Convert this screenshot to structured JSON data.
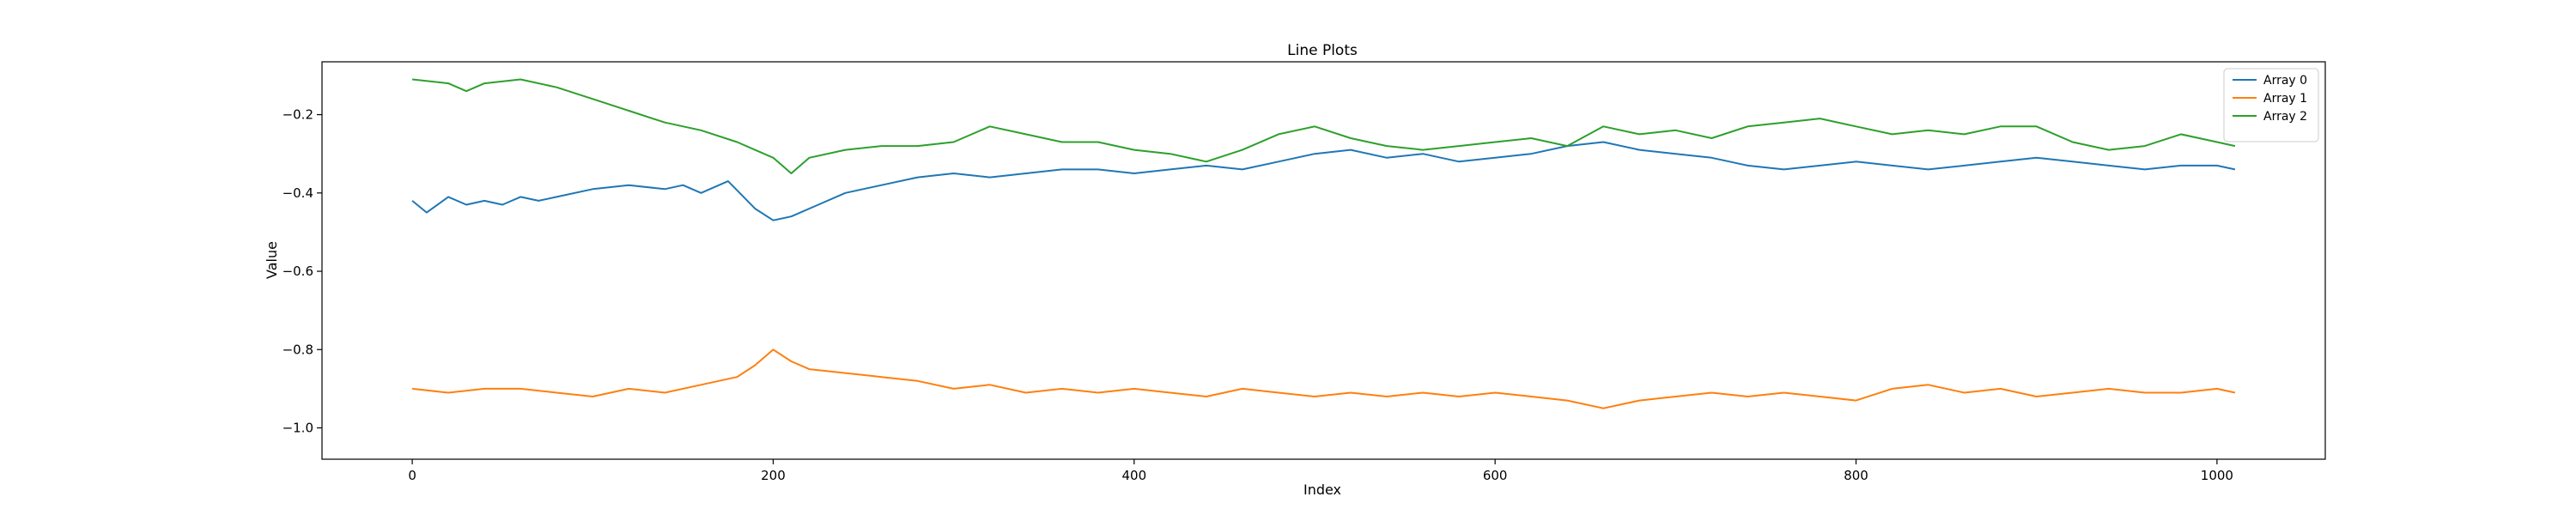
{
  "chart_data": {
    "type": "line",
    "title": "Line Plots",
    "xlabel": "Index",
    "ylabel": "Value",
    "xlim": [
      -50,
      1060
    ],
    "ylim": [
      -1.08,
      -0.065
    ],
    "xticks": [
      0,
      200,
      400,
      600,
      800,
      1000
    ],
    "yticks": [
      -1.0,
      -0.8,
      -0.6,
      -0.4,
      -0.2
    ],
    "grid": false,
    "legend_position": "top-right",
    "series": [
      {
        "name": "Array 0",
        "color": "#1f77b4",
        "x": [
          0,
          8,
          20,
          30,
          40,
          50,
          60,
          70,
          80,
          100,
          120,
          140,
          150,
          160,
          175,
          190,
          200,
          210,
          225,
          240,
          260,
          280,
          300,
          320,
          340,
          360,
          380,
          400,
          420,
          440,
          460,
          480,
          500,
          520,
          540,
          560,
          580,
          600,
          620,
          640,
          660,
          680,
          700,
          720,
          740,
          760,
          780,
          800,
          820,
          840,
          860,
          880,
          900,
          920,
          940,
          960,
          980,
          1000,
          1010
        ],
        "values": [
          -0.42,
          -0.45,
          -0.41,
          -0.43,
          -0.42,
          -0.43,
          -0.41,
          -0.42,
          -0.41,
          -0.39,
          -0.38,
          -0.39,
          -0.38,
          -0.4,
          -0.37,
          -0.44,
          -0.47,
          -0.46,
          -0.43,
          -0.4,
          -0.38,
          -0.36,
          -0.35,
          -0.36,
          -0.35,
          -0.34,
          -0.34,
          -0.35,
          -0.34,
          -0.33,
          -0.34,
          -0.32,
          -0.3,
          -0.29,
          -0.31,
          -0.3,
          -0.32,
          -0.31,
          -0.3,
          -0.28,
          -0.27,
          -0.29,
          -0.3,
          -0.31,
          -0.33,
          -0.34,
          -0.33,
          -0.32,
          -0.33,
          -0.34,
          -0.33,
          -0.32,
          -0.31,
          -0.32,
          -0.33,
          -0.34,
          -0.33,
          -0.33,
          -0.34
        ]
      },
      {
        "name": "Array 1",
        "color": "#ff7f0e",
        "x": [
          0,
          20,
          40,
          60,
          80,
          100,
          120,
          140,
          160,
          180,
          190,
          200,
          210,
          220,
          240,
          260,
          280,
          300,
          320,
          340,
          360,
          380,
          400,
          420,
          440,
          460,
          480,
          500,
          520,
          540,
          560,
          580,
          600,
          620,
          640,
          660,
          680,
          700,
          720,
          740,
          760,
          780,
          800,
          820,
          840,
          860,
          880,
          900,
          920,
          940,
          960,
          980,
          1000,
          1010
        ],
        "values": [
          -0.9,
          -0.91,
          -0.9,
          -0.9,
          -0.91,
          -0.92,
          -0.9,
          -0.91,
          -0.89,
          -0.87,
          -0.84,
          -0.8,
          -0.83,
          -0.85,
          -0.86,
          -0.87,
          -0.88,
          -0.9,
          -0.89,
          -0.91,
          -0.9,
          -0.91,
          -0.9,
          -0.91,
          -0.92,
          -0.9,
          -0.91,
          -0.92,
          -0.91,
          -0.92,
          -0.91,
          -0.92,
          -0.91,
          -0.92,
          -0.93,
          -0.95,
          -0.93,
          -0.92,
          -0.91,
          -0.92,
          -0.91,
          -0.92,
          -0.93,
          -0.9,
          -0.89,
          -0.91,
          -0.9,
          -0.92,
          -0.91,
          -0.9,
          -0.91,
          -0.91,
          -0.9,
          -0.91
        ]
      },
      {
        "name": "Array 2",
        "color": "#2ca02c",
        "x": [
          0,
          20,
          30,
          40,
          60,
          80,
          100,
          120,
          140,
          160,
          180,
          200,
          210,
          220,
          240,
          260,
          280,
          300,
          320,
          340,
          360,
          380,
          400,
          420,
          440,
          460,
          480,
          500,
          520,
          540,
          560,
          580,
          600,
          620,
          640,
          660,
          680,
          700,
          720,
          740,
          760,
          780,
          800,
          820,
          840,
          860,
          880,
          900,
          920,
          940,
          960,
          980,
          1000,
          1010
        ],
        "values": [
          -0.11,
          -0.12,
          -0.14,
          -0.12,
          -0.11,
          -0.13,
          -0.16,
          -0.19,
          -0.22,
          -0.24,
          -0.27,
          -0.31,
          -0.35,
          -0.31,
          -0.29,
          -0.28,
          -0.28,
          -0.27,
          -0.23,
          -0.25,
          -0.27,
          -0.27,
          -0.29,
          -0.3,
          -0.32,
          -0.29,
          -0.25,
          -0.23,
          -0.26,
          -0.28,
          -0.29,
          -0.28,
          -0.27,
          -0.26,
          -0.28,
          -0.23,
          -0.25,
          -0.24,
          -0.26,
          -0.23,
          -0.22,
          -0.21,
          -0.23,
          -0.25,
          -0.24,
          -0.25,
          -0.23,
          -0.23,
          -0.27,
          -0.29,
          -0.28,
          -0.25,
          -0.27,
          -0.28
        ]
      }
    ]
  }
}
